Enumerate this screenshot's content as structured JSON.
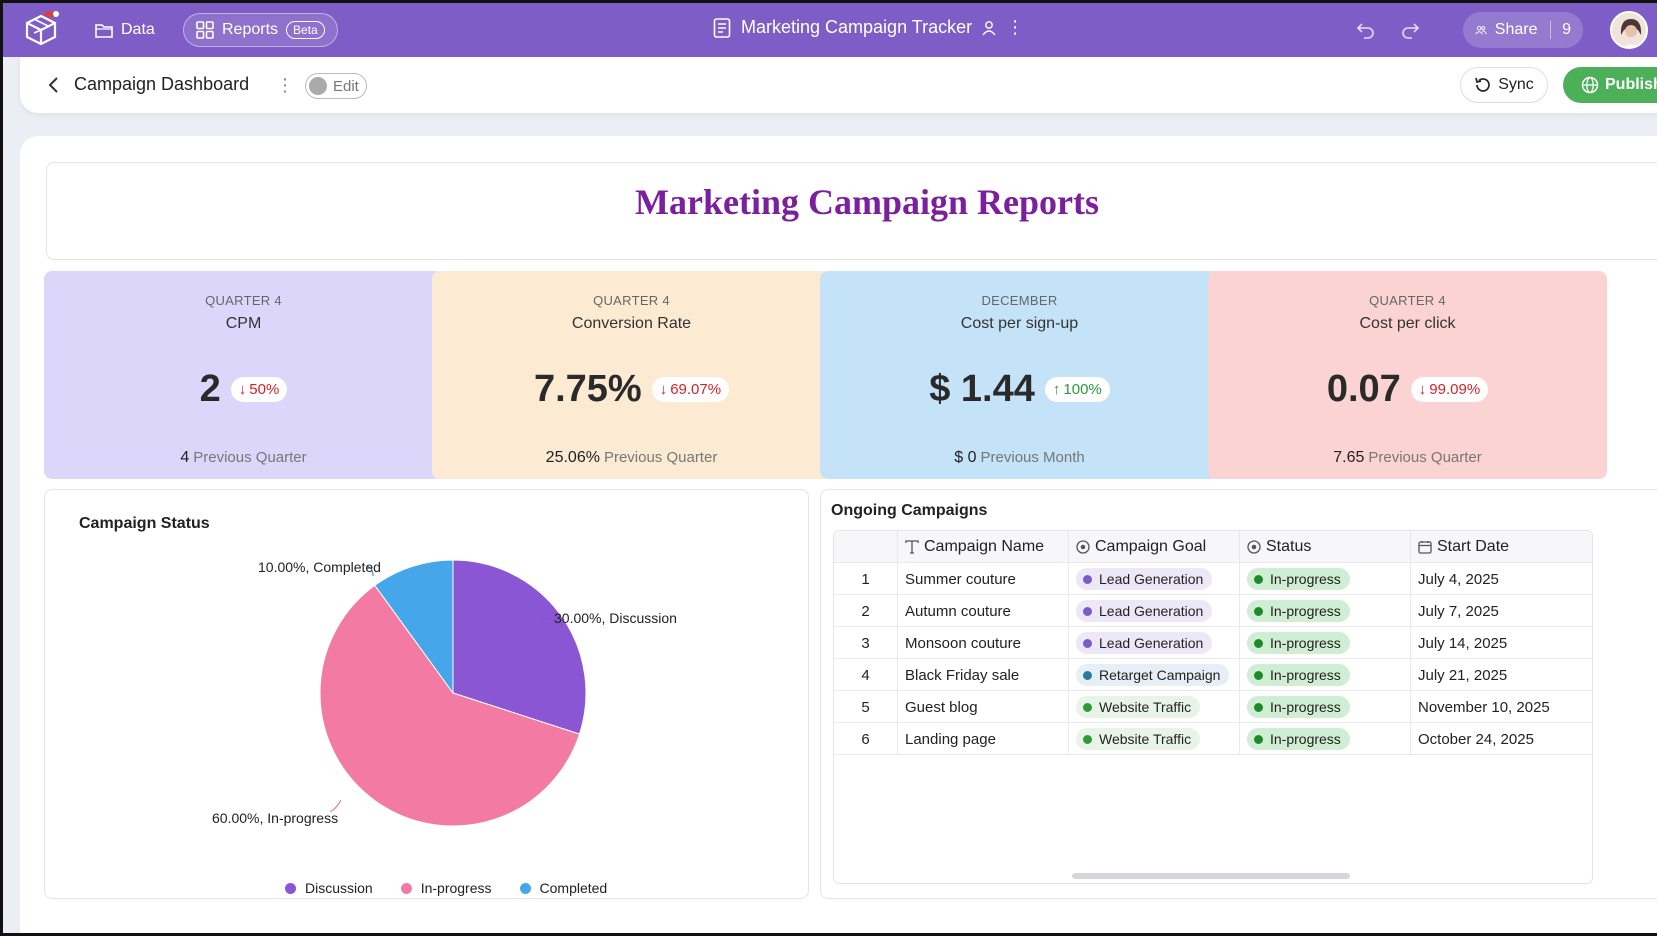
{
  "topbar": {
    "data_label": "Data",
    "reports_label": "Reports",
    "beta_label": "Beta",
    "doc_title": "Marketing Campaign Tracker",
    "share_label": "Share",
    "share_count": "9",
    "colors": {
      "bar": "#7e5ec6"
    }
  },
  "subbar": {
    "title": "Campaign Dashboard",
    "edit_label": "Edit",
    "sync_label": "Sync",
    "publish_label": "Publish"
  },
  "report": {
    "title": "Marketing Campaign Reports"
  },
  "kpis": [
    {
      "period": "QUARTER 4",
      "name": "CPM",
      "value": "2",
      "delta": "50%",
      "direction": "down",
      "prev_value": "4",
      "prev_label": "Previous Quarter",
      "color": "#ddd6fb"
    },
    {
      "period": "QUARTER 4",
      "name": "Conversion Rate",
      "value": "7.75%",
      "delta": "69.07%",
      "direction": "down",
      "prev_value": "25.06%",
      "prev_label": "Previous Quarter",
      "color": "#fcebd2"
    },
    {
      "period": "DECEMBER",
      "name": "Cost per sign-up",
      "value": "$ 1.44",
      "delta": "100%",
      "direction": "up",
      "prev_value": "$ 0",
      "prev_label": "Previous Month",
      "color": "#c4e3f8"
    },
    {
      "period": "QUARTER 4",
      "name": "Cost per click",
      "value": "0.07",
      "delta": "99.09%",
      "direction": "down",
      "prev_value": "7.65",
      "prev_label": "Previous Quarter",
      "color": "#fbd3d3"
    }
  ],
  "status_panel": {
    "title": "Campaign Status",
    "labels": {
      "completed": "10.00%, Completed",
      "discussion": "30.00%, Discussion",
      "inprogress": "60.00%, In-progress"
    },
    "legend": [
      "Discussion",
      "In-progress",
      "Completed"
    ]
  },
  "chart_data": {
    "type": "pie",
    "title": "Campaign Status",
    "series": [
      {
        "name": "Discussion",
        "value": 30,
        "color": "#8a56d4"
      },
      {
        "name": "In-progress",
        "value": 60,
        "color": "#f27aa3"
      },
      {
        "name": "Completed",
        "value": 10,
        "color": "#45a6ea"
      }
    ]
  },
  "table_panel": {
    "title": "Ongoing Campaigns",
    "headers": [
      "Campaign Name",
      "Campaign Goal",
      "Status",
      "Start Date"
    ],
    "rows": [
      {
        "n": "1",
        "name": "Summer couture",
        "goal": "Lead Generation",
        "goal_type": "lead",
        "status": "In-progress",
        "date": "July 4, 2025"
      },
      {
        "n": "2",
        "name": "Autumn couture",
        "goal": "Lead Generation",
        "goal_type": "lead",
        "status": "In-progress",
        "date": "July 7, 2025"
      },
      {
        "n": "3",
        "name": "Monsoon couture",
        "goal": "Lead Generation",
        "goal_type": "lead",
        "status": "In-progress",
        "date": "July 14, 2025"
      },
      {
        "n": "4",
        "name": "Black Friday sale",
        "goal": "Retarget Campaign",
        "goal_type": "retarget",
        "status": "In-progress",
        "date": "July 21, 2025"
      },
      {
        "n": "5",
        "name": "Guest blog",
        "goal": "Website Traffic",
        "goal_type": "traffic",
        "status": "In-progress",
        "date": "November 10, 2025"
      },
      {
        "n": "6",
        "name": "Landing page",
        "goal": "Website Traffic",
        "goal_type": "traffic",
        "status": "In-progress",
        "date": "October 24, 2025"
      }
    ]
  }
}
